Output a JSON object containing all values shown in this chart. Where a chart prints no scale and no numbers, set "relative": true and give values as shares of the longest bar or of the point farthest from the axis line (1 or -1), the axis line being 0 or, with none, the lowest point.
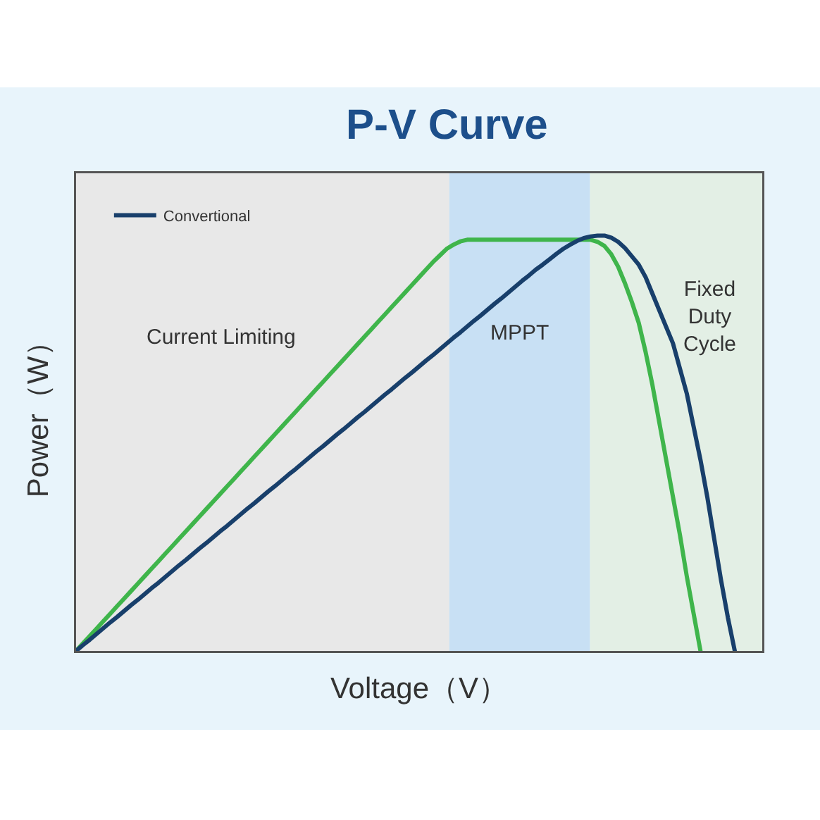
{
  "chart_data": {
    "type": "line",
    "title": "P-V Curve",
    "xlabel": "Voltage（V）",
    "ylabel": "Power（W）",
    "relative": true,
    "legend": "top left",
    "categories": [
      null,
      null,
      null,
      null,
      null,
      null,
      null,
      null,
      null,
      null,
      null,
      null,
      null,
      null,
      null,
      null,
      null,
      null,
      null,
      null,
      null,
      null,
      null,
      null,
      null,
      null,
      null,
      null,
      null,
      null,
      null,
      null,
      null,
      null,
      null,
      null,
      null,
      null,
      null,
      null,
      null,
      null,
      null,
      null,
      null,
      null,
      null,
      null,
      null,
      null,
      null,
      null,
      null,
      null,
      null,
      null,
      null,
      null,
      null,
      null,
      null,
      null,
      null,
      null,
      null,
      null,
      null,
      null,
      null,
      null,
      null,
      null,
      null,
      null,
      null,
      null,
      null,
      null,
      null,
      null,
      null,
      null,
      null,
      null,
      null,
      null,
      null,
      null,
      null,
      null,
      null,
      null,
      null,
      null,
      null,
      null,
      null,
      null,
      null,
      null,
      null
    ],
    "series": [
      {
        "color": "#3fb54b",
        "values": [
          0,
          0.018,
          0.036,
          0.054,
          0.072,
          0.09,
          0.108,
          0.126,
          0.144,
          0.162,
          0.18,
          0.198,
          0.216,
          0.234,
          0.252,
          0.27,
          0.288,
          0.306,
          0.324,
          0.342,
          0.36,
          0.378,
          0.396,
          0.414,
          0.432,
          0.45,
          0.468,
          0.486,
          0.504,
          0.522,
          0.54,
          0.558,
          0.576,
          0.594,
          0.612,
          0.63,
          0.648,
          0.666,
          0.684,
          0.702,
          0.72,
          0.738,
          0.756,
          0.774,
          0.792,
          0.81,
          0.828,
          0.846,
          0.864,
          0.882,
          0.9,
          0.918,
          0.936,
          0.952,
          0.968,
          0.978,
          0.986,
          0.99,
          0.99,
          0.99,
          0.99,
          0.99,
          0.99,
          0.99,
          0.99,
          0.99,
          0.99,
          0.99,
          0.99,
          0.99,
          0.99,
          0.99,
          0.99,
          0.99,
          0.99,
          0.99,
          0.985,
          0.975,
          0.955,
          0.925,
          0.885,
          0.84,
          0.79,
          0.72,
          0.64,
          0.55,
          0.46,
          0.37,
          0.28,
          0.18,
          0.09,
          0,
          null,
          null,
          null,
          null,
          null,
          null,
          null,
          null,
          null
        ]
      },
      {
        "name": "Convertional",
        "color": "#183f6b",
        "values": [
          0,
          0.014,
          0.027,
          0.041,
          0.055,
          0.069,
          0.082,
          0.096,
          0.11,
          0.123,
          0.137,
          0.151,
          0.164,
          0.178,
          0.192,
          0.206,
          0.219,
          0.233,
          0.247,
          0.26,
          0.274,
          0.288,
          0.301,
          0.315,
          0.329,
          0.343,
          0.356,
          0.37,
          0.384,
          0.397,
          0.411,
          0.425,
          0.438,
          0.452,
          0.466,
          0.48,
          0.493,
          0.507,
          0.521,
          0.534,
          0.548,
          0.562,
          0.575,
          0.589,
          0.603,
          0.617,
          0.63,
          0.644,
          0.658,
          0.671,
          0.685,
          0.699,
          0.712,
          0.726,
          0.74,
          0.754,
          0.767,
          0.781,
          0.795,
          0.808,
          0.822,
          0.836,
          0.849,
          0.863,
          0.877,
          0.891,
          0.904,
          0.918,
          0.93,
          0.943,
          0.956,
          0.968,
          0.978,
          0.987,
          0.994,
          0.998,
          1,
          1,
          0.995,
          0.985,
          0.97,
          0.95,
          0.93,
          0.9,
          0.86,
          0.82,
          0.78,
          0.74,
          0.68,
          0.62,
          0.54,
          0.46,
          0.37,
          0.27,
          0.17,
          0.08,
          0,
          null,
          null,
          null,
          null
        ]
      }
    ],
    "annotations": [
      "Current Limiting",
      "MPPT",
      "Fixed Duty Cycle"
    ]
  }
}
